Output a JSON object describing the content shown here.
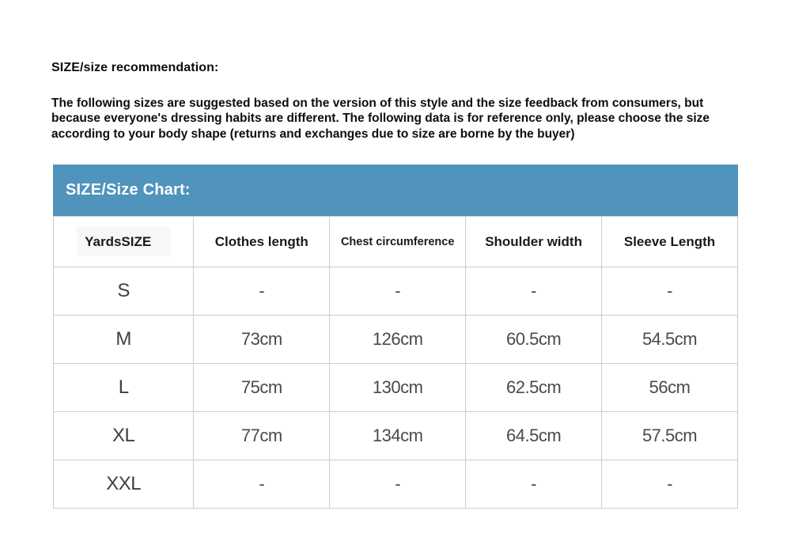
{
  "page": {
    "heading": "SIZE/size recommendation:",
    "intro_paragraph": "The following sizes are suggested based on the version of this style and the size feedback from consumers, but because everyone's dressing habits are different. The following data is for reference only, please choose the size according to your body shape (returns and exchanges due to size are borne by the buyer)"
  },
  "size_chart": {
    "banner_title": "SIZE/Size Chart:",
    "columns": [
      "YardsSIZE",
      "Clothes length",
      "Chest circumference",
      "Shoulder width",
      "Sleeve Length"
    ],
    "rows": [
      {
        "size": "S",
        "values": [
          "-",
          "-",
          "-",
          "-"
        ]
      },
      {
        "size": "M",
        "values": [
          "73cm",
          "126cm",
          "60.5cm",
          "54.5cm"
        ]
      },
      {
        "size": "L",
        "values": [
          "75cm",
          "130cm",
          "62.5cm",
          "56cm"
        ]
      },
      {
        "size": "XL",
        "values": [
          "77cm",
          "134cm",
          "64.5cm",
          "57.5cm"
        ]
      },
      {
        "size": "XXL",
        "values": [
          "-",
          "-",
          "-",
          "-"
        ]
      }
    ]
  },
  "colors": {
    "banner_blue": "#5093BC",
    "table_border": "#cccccc",
    "header_text": "#1a1a1a",
    "data_text": "#4a4a4a",
    "page_background": "#ffffff"
  },
  "chart_data": {
    "type": "table",
    "title": "SIZE/Size Chart:",
    "columns": [
      "YardsSIZE",
      "Clothes length",
      "Chest circumference",
      "Shoulder width",
      "Sleeve Length"
    ],
    "rows": [
      [
        "S",
        "-",
        "-",
        "-",
        "-"
      ],
      [
        "M",
        "73cm",
        "126cm",
        "60.5cm",
        "54.5cm"
      ],
      [
        "L",
        "75cm",
        "130cm",
        "62.5cm",
        "56cm"
      ],
      [
        "XL",
        "77cm",
        "134cm",
        "64.5cm",
        "57.5cm"
      ],
      [
        "XXL",
        "-",
        "-",
        "-",
        "-"
      ]
    ]
  }
}
